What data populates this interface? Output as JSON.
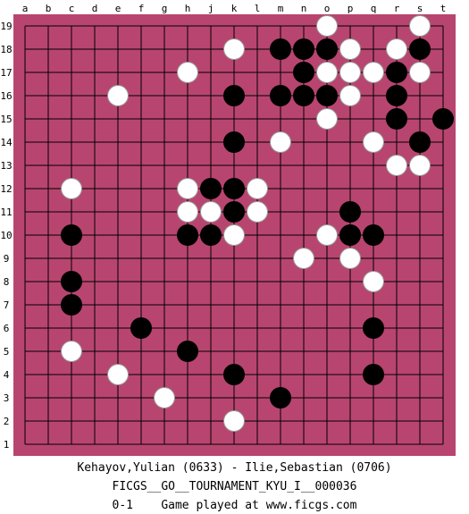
{
  "board": {
    "size": 19,
    "colors": {
      "background": "#b8456f",
      "line": "#000000",
      "black": "#000000",
      "white": "#ffffff"
    },
    "columns": [
      "a",
      "b",
      "c",
      "d",
      "e",
      "f",
      "g",
      "h",
      "j",
      "k",
      "l",
      "m",
      "n",
      "o",
      "p",
      "q",
      "r",
      "s",
      "t"
    ],
    "rows": [
      "19",
      "18",
      "17",
      "16",
      "15",
      "14",
      "13",
      "12",
      "11",
      "10",
      "9",
      "8",
      "7",
      "6",
      "5",
      "4",
      "3",
      "2",
      "1"
    ],
    "black_stones": [
      "m18",
      "n18",
      "o18",
      "s18",
      "n17",
      "r17",
      "m16",
      "n16",
      "o16",
      "r16",
      "k16",
      "r15",
      "t15",
      "k14",
      "s14",
      "j12",
      "k12",
      "k11",
      "p11",
      "c10",
      "h10",
      "j10",
      "p10",
      "q10",
      "c8",
      "c7",
      "f6",
      "q6",
      "h5",
      "k4",
      "q4",
      "m3"
    ],
    "white_stones": [
      "o19",
      "s19",
      "k18",
      "p18",
      "r18",
      "h17",
      "o17",
      "p17",
      "q17",
      "s17",
      "e16",
      "p16",
      "o15",
      "m14",
      "q14",
      "r13",
      "s13",
      "c12",
      "h12",
      "l12",
      "h11",
      "j11",
      "l11",
      "k10",
      "o10",
      "n9",
      "p9",
      "q8",
      "c5",
      "e4",
      "g3",
      "k2"
    ]
  },
  "game": {
    "players_line": "Kehayov,Yulian (0633) - Ilie,Sebastian (0706)",
    "tournament": "FICGS__GO__TOURNAMENT_KYU_I__000036",
    "result": "0-1",
    "footer": "Game played at www.ficgs.com"
  }
}
